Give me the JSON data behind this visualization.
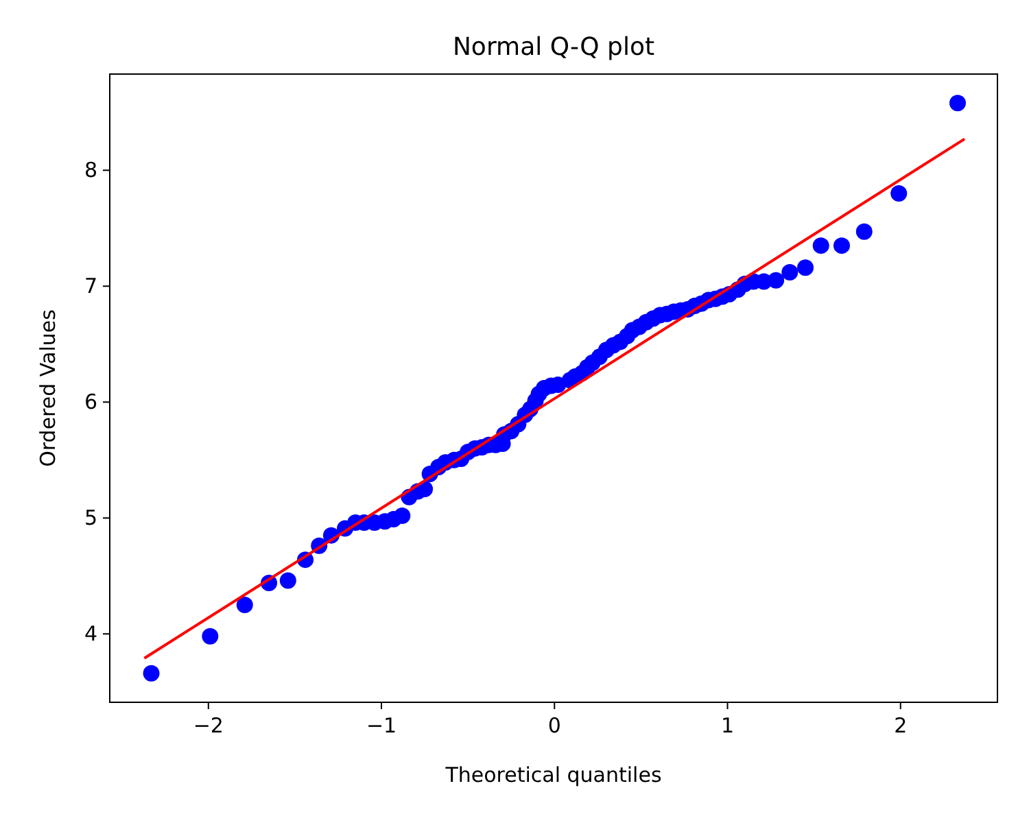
{
  "chart_data": {
    "type": "scatter",
    "title": "Normal Q-Q plot",
    "xlabel": "Theoretical quantiles",
    "ylabel": "Ordered Values",
    "xlim": [
      -2.57,
      2.56
    ],
    "ylim": [
      3.41,
      8.83
    ],
    "xticks": [
      {
        "value": -2,
        "label": "−2"
      },
      {
        "value": -1,
        "label": "−1"
      },
      0,
      1,
      2
    ],
    "yticks": [
      4,
      5,
      6,
      7,
      8
    ],
    "grid": false,
    "series": [
      {
        "marker": "circle",
        "color": "#0000ff",
        "x": [
          -2.33,
          -1.99,
          -1.79,
          -1.65,
          -1.54,
          -1.44,
          -1.36,
          -1.29,
          -1.21,
          -1.15,
          -1.1,
          -1.04,
          -0.98,
          -0.93,
          -0.88,
          -0.84,
          -0.79,
          -0.75,
          -0.72,
          -0.67,
          -0.63,
          -0.58,
          -0.54,
          -0.5,
          -0.46,
          -0.42,
          -0.38,
          -0.34,
          -0.3,
          -0.29,
          -0.25,
          -0.21,
          -0.17,
          -0.14,
          -0.11,
          -0.09,
          -0.06,
          -0.02,
          0.02,
          0.09,
          0.12,
          0.16,
          0.19,
          0.22,
          0.26,
          0.3,
          0.34,
          0.38,
          0.42,
          0.45,
          0.49,
          0.53,
          0.57,
          0.61,
          0.65,
          0.69,
          0.73,
          0.77,
          0.81,
          0.85,
          0.89,
          0.93,
          0.97,
          1.01,
          1.06,
          1.1,
          1.15,
          1.21,
          1.28,
          1.36,
          1.45,
          1.54,
          1.66,
          1.79,
          1.99,
          2.33
        ],
        "values": [
          3.66,
          3.98,
          4.25,
          4.44,
          4.46,
          4.64,
          4.76,
          4.85,
          4.91,
          4.96,
          4.96,
          4.96,
          4.97,
          4.99,
          5.02,
          5.18,
          5.23,
          5.25,
          5.38,
          5.44,
          5.48,
          5.5,
          5.51,
          5.57,
          5.6,
          5.61,
          5.63,
          5.63,
          5.64,
          5.72,
          5.75,
          5.81,
          5.89,
          5.94,
          6.01,
          6.07,
          6.12,
          6.14,
          6.15,
          6.19,
          6.22,
          6.25,
          6.3,
          6.34,
          6.39,
          6.45,
          6.49,
          6.52,
          6.57,
          6.62,
          6.65,
          6.69,
          6.72,
          6.75,
          6.76,
          6.78,
          6.79,
          6.8,
          6.83,
          6.85,
          6.88,
          6.89,
          6.91,
          6.93,
          6.97,
          7.02,
          7.04,
          7.04,
          7.05,
          7.12,
          7.16,
          7.35,
          7.35,
          7.47,
          7.8,
          8.58
        ]
      },
      {
        "type": "line",
        "marker": "none",
        "color": "#ff0000",
        "x": [
          -2.37,
          2.37
        ],
        "values": [
          3.79,
          8.27
        ]
      }
    ]
  }
}
